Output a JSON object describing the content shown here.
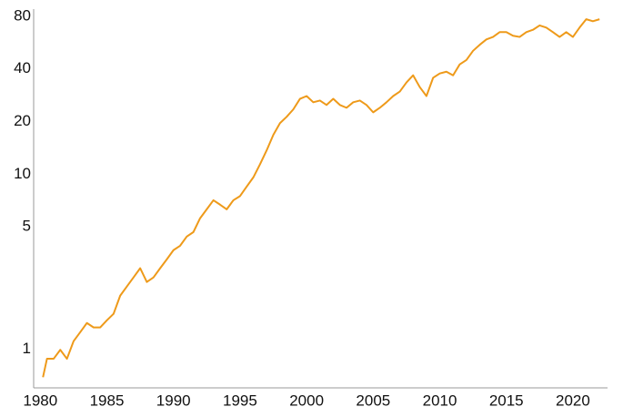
{
  "chart_data": {
    "type": "line",
    "log_scale_y": true,
    "grid": false,
    "color": "#ee9a1a",
    "xlim": [
      1979.5,
      2022.6
    ],
    "xticks": [
      1980,
      1985,
      1990,
      1995,
      2000,
      2005,
      2010,
      2015,
      2020
    ],
    "ylim": [
      0.6,
      88
    ],
    "yticks": [
      1,
      5,
      10,
      20,
      40,
      80
    ],
    "x": [
      1980.2,
      1980.5,
      1981,
      1981.5,
      1982,
      1982.5,
      1983,
      1983.5,
      1984,
      1984.5,
      1985,
      1985.5,
      1986,
      1986.5,
      1987,
      1987.5,
      1988,
      1988.5,
      1989,
      1989.5,
      1990,
      1990.5,
      1991,
      1991.5,
      1992,
      1992.5,
      1993,
      1993.5,
      1994,
      1994.5,
      1995,
      1995.5,
      1996,
      1996.5,
      1997,
      1997.5,
      1998,
      1998.5,
      1999,
      1999.5,
      2000,
      2000.5,
      2001,
      2001.5,
      2002,
      2002.5,
      2003,
      2003.5,
      2004,
      2004.5,
      2005,
      2005.5,
      2006,
      2006.5,
      2007,
      2007.5,
      2008,
      2008.5,
      2009,
      2009.5,
      2010,
      2010.5,
      2011,
      2011.5,
      2012,
      2012.5,
      2013,
      2013.5,
      2014,
      2014.5,
      2015,
      2015.5,
      2016,
      2016.5,
      2017,
      2017.5,
      2018,
      2018.5,
      2019,
      2019.5,
      2020,
      2020.5,
      2021,
      2021.5,
      2022
    ],
    "values": [
      0.69,
      0.88,
      0.88,
      0.99,
      0.88,
      1.11,
      1.25,
      1.41,
      1.33,
      1.33,
      1.46,
      1.59,
      2.02,
      2.28,
      2.57,
      2.9,
      2.42,
      2.57,
      2.9,
      3.26,
      3.68,
      3.9,
      4.4,
      4.67,
      5.6,
      6.3,
      7.1,
      6.7,
      6.3,
      7.1,
      7.5,
      8.5,
      9.6,
      11.4,
      13.7,
      16.8,
      19.6,
      21.3,
      23.5,
      27,
      28,
      25.8,
      26.4,
      24.9,
      27,
      24.9,
      24,
      25.8,
      26.4,
      24.9,
      22.6,
      24,
      25.8,
      28,
      29.7,
      33.5,
      36.8,
      31.5,
      28,
      35.6,
      37.7,
      38.6,
      36.8,
      42.5,
      45,
      50.8,
      55,
      59,
      61,
      65,
      65,
      62,
      61,
      65,
      67,
      71,
      69,
      65,
      61,
      65,
      61,
      69,
      77,
      75,
      77
    ]
  }
}
